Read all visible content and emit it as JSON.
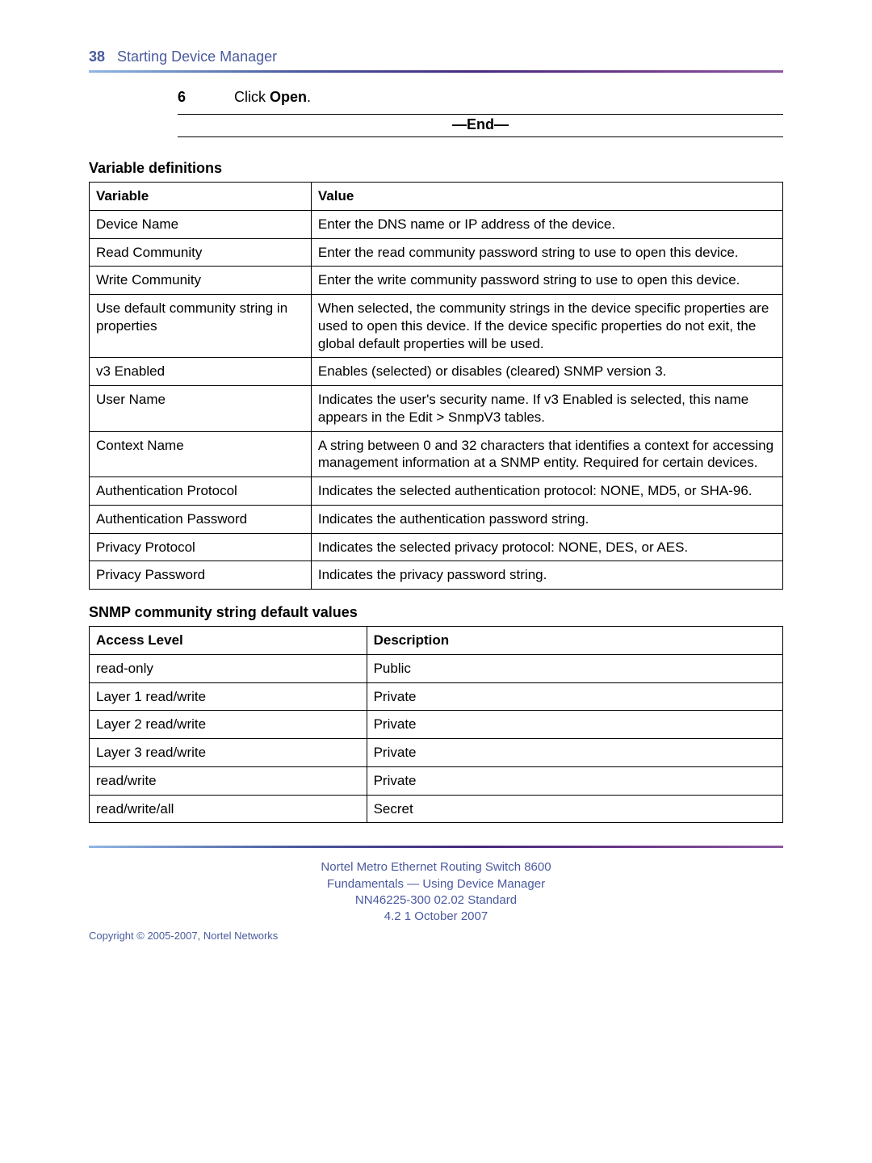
{
  "header": {
    "page_number": "38",
    "section_title": "Starting Device Manager"
  },
  "step": {
    "number": "6",
    "prefix": "Click ",
    "bold": "Open",
    "suffix": "."
  },
  "end_label": "—End—",
  "table1_title": "Variable definitions",
  "table1": {
    "columns": [
      "Variable",
      "Value"
    ],
    "rows": [
      [
        "Device Name",
        "Enter the DNS name or IP address of the device."
      ],
      [
        "Read Community",
        "Enter the read community password string to use to open this device."
      ],
      [
        "Write Community",
        "Enter the write community password string to use to open this device."
      ],
      [
        "Use default community string in properties",
        "When selected, the community strings in the device specific properties are used to open this device. If the device specific properties do not exit, the global default properties will be used."
      ],
      [
        "v3 Enabled",
        "Enables (selected) or disables (cleared) SNMP version 3."
      ],
      [
        "User Name",
        "Indicates the user's security name. If v3 Enabled is selected, this name appears in the Edit > SnmpV3 tables."
      ],
      [
        "Context Name",
        "A string between 0 and 32 characters that identifies a context for accessing management information at a SNMP entity. Required for certain devices."
      ],
      [
        "Authentication Protocol",
        "Indicates the selected authentication protocol: NONE, MD5, or SHA-96."
      ],
      [
        "Authentication Password",
        "Indicates the authentication password string."
      ],
      [
        "Privacy Protocol",
        "Indicates the selected privacy protocol: NONE, DES, or AES."
      ],
      [
        "Privacy Password",
        "Indicates the privacy password string."
      ]
    ]
  },
  "table2_title": "SNMP community string default values",
  "table2": {
    "columns": [
      "Access Level",
      "Description"
    ],
    "rows": [
      [
        "read-only",
        "Public"
      ],
      [
        "Layer 1 read/write",
        "Private"
      ],
      [
        "Layer 2 read/write",
        "Private"
      ],
      [
        "Layer 3 read/write",
        "Private"
      ],
      [
        "read/write",
        "Private"
      ],
      [
        "read/write/all",
        "Secret"
      ]
    ]
  },
  "footer": {
    "line1": "Nortel Metro Ethernet Routing Switch 8600",
    "line2": "Fundamentals — Using Device Manager",
    "line3": "NN46225-300   02.02   Standard",
    "line4": "4.2   1 October 2007",
    "copyright": "Copyright © 2005-2007, Nortel Networks"
  }
}
